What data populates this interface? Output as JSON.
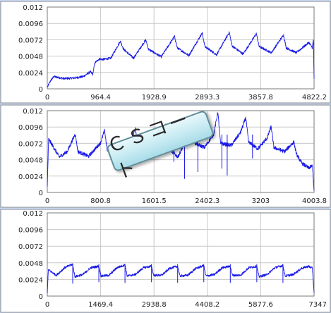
{
  "colors": {
    "series": "#1a1ae6",
    "grid": "#c8c8c8",
    "frame_bg": "#c9d9f7",
    "plot_bg": "#ffffff"
  },
  "watermark": {
    "text": "ＣＳコート"
  },
  "chart_data": [
    {
      "type": "line",
      "title": "",
      "xlabel": "",
      "ylabel": "",
      "ylim": [
        0,
        0.012
      ],
      "xlim": [
        0,
        4822.2
      ],
      "yticks": [
        "0",
        "0.0024",
        "0.0048",
        "0.0072",
        "0.0096",
        "0.012"
      ],
      "xticks": [
        "0",
        "964.4",
        "1928.9",
        "2893.3",
        "3857.8",
        "4822.2"
      ],
      "grid": true,
      "series": [
        {
          "points": [
            [
              0,
              0.0002
            ],
            [
              60,
              0.0012
            ],
            [
              120,
              0.0018
            ],
            [
              300,
              0.0015
            ],
            [
              500,
              0.0016
            ],
            [
              650,
              0.0018
            ],
            [
              780,
              0.0025
            ],
            [
              820,
              0.0021
            ],
            [
              860,
              0.0038
            ],
            [
              940,
              0.0044
            ],
            [
              1000,
              0.0043
            ],
            [
              1150,
              0.0045
            ],
            [
              1320,
              0.007
            ],
            [
              1380,
              0.0058
            ],
            [
              1560,
              0.0045
            ],
            [
              1780,
              0.0072
            ],
            [
              1830,
              0.0058
            ],
            [
              2060,
              0.0047
            ],
            [
              2300,
              0.0077
            ],
            [
              2350,
              0.006
            ],
            [
              2560,
              0.0049
            ],
            [
              2800,
              0.0082
            ],
            [
              2850,
              0.0062
            ],
            [
              3060,
              0.005
            ],
            [
              3290,
              0.0083
            ],
            [
              3340,
              0.0063
            ],
            [
              3540,
              0.0051
            ],
            [
              3780,
              0.0081
            ],
            [
              3830,
              0.0062
            ],
            [
              4050,
              0.0053
            ],
            [
              4270,
              0.0079
            ],
            [
              4320,
              0.006
            ],
            [
              4500,
              0.0053
            ],
            [
              4730,
              0.0068
            ],
            [
              4790,
              0.006
            ],
            [
              4810,
              0.0072
            ],
            [
              4822,
              0.0015
            ]
          ]
        }
      ]
    },
    {
      "type": "line",
      "title": "",
      "xlabel": "",
      "ylabel": "",
      "ylim": [
        0,
        0.012
      ],
      "xlim": [
        0,
        4003.8
      ],
      "yticks": [
        "0",
        "0.0024",
        "0.0048",
        "0.0072",
        "0.0096",
        "0.012"
      ],
      "xticks": [
        "0",
        "800.8",
        "1601.5",
        "2402.3",
        "3203",
        "4003.8"
      ],
      "grid": true,
      "series": [
        {
          "points": [
            [
              0,
              0.0009
            ],
            [
              20,
              0.0078
            ],
            [
              60,
              0.0072
            ],
            [
              180,
              0.0052
            ],
            [
              300,
              0.006
            ],
            [
              420,
              0.0086
            ],
            [
              460,
              0.006
            ],
            [
              620,
              0.0053
            ],
            [
              800,
              0.0073
            ],
            [
              860,
              0.0091
            ],
            [
              900,
              0.0062
            ],
            [
              1060,
              0.0051
            ],
            [
              1260,
              0.0078
            ],
            [
              1320,
              0.0094
            ],
            [
              1360,
              0.0065
            ],
            [
              1520,
              0.005
            ],
            [
              1720,
              0.008
            ],
            [
              1780,
              0.0101
            ],
            [
              1820,
              0.0065
            ],
            [
              1960,
              0.0052
            ],
            [
              2100,
              0.008
            ],
            [
              2180,
              0.0112
            ],
            [
              2220,
              0.0072
            ],
            [
              2360,
              0.0066
            ],
            [
              2500,
              0.0086
            ],
            [
              2560,
              0.0118
            ],
            [
              2600,
              0.0072
            ],
            [
              2760,
              0.0069
            ],
            [
              2900,
              0.0088
            ],
            [
              2980,
              0.011
            ],
            [
              3020,
              0.0074
            ],
            [
              3160,
              0.0064
            ],
            [
              3300,
              0.008
            ],
            [
              3360,
              0.0097
            ],
            [
              3400,
              0.0066
            ],
            [
              3560,
              0.006
            ],
            [
              3700,
              0.0074
            ],
            [
              3740,
              0.0056
            ],
            [
              3820,
              0.0043
            ],
            [
              3920,
              0.0036
            ],
            [
              3980,
              0.0039
            ],
            [
              4003,
              0.0003
            ]
          ]
        }
      ]
    },
    {
      "type": "line",
      "title": "",
      "xlabel": "",
      "ylabel": "",
      "ylim": [
        0,
        0.012
      ],
      "xlim": [
        0,
        7347
      ],
      "yticks": [
        "0",
        "0.0024",
        "0.0048",
        "0.0072",
        "0.0096",
        "0.012"
      ],
      "xticks": [
        "0",
        "1469.4",
        "2938.8",
        "4408.2",
        "5877.6",
        "7347"
      ],
      "grid": true,
      "series": [
        {
          "points": [
            [
              0,
              0.0004
            ],
            [
              30,
              0.0038
            ],
            [
              250,
              0.003
            ],
            [
              480,
              0.0041
            ],
            [
              700,
              0.0046
            ],
            [
              760,
              0.0028
            ],
            [
              980,
              0.0031
            ],
            [
              1200,
              0.0041
            ],
            [
              1420,
              0.0043
            ],
            [
              1480,
              0.0029
            ],
            [
              1700,
              0.003
            ],
            [
              1920,
              0.0041
            ],
            [
              2140,
              0.0045
            ],
            [
              2200,
              0.0029
            ],
            [
              2420,
              0.0031
            ],
            [
              2650,
              0.0041
            ],
            [
              2870,
              0.0043
            ],
            [
              2930,
              0.003
            ],
            [
              3150,
              0.003
            ],
            [
              3370,
              0.004
            ],
            [
              3590,
              0.0043
            ],
            [
              3650,
              0.0029
            ],
            [
              3870,
              0.003
            ],
            [
              4090,
              0.004
            ],
            [
              4310,
              0.0044
            ],
            [
              4370,
              0.0029
            ],
            [
              4600,
              0.0031
            ],
            [
              4820,
              0.0041
            ],
            [
              5040,
              0.0043
            ],
            [
              5100,
              0.003
            ],
            [
              5320,
              0.003
            ],
            [
              5550,
              0.0041
            ],
            [
              5770,
              0.0043
            ],
            [
              5830,
              0.0028
            ],
            [
              6050,
              0.0031
            ],
            [
              6270,
              0.0041
            ],
            [
              6490,
              0.0044
            ],
            [
              6550,
              0.0029
            ],
            [
              6770,
              0.0031
            ],
            [
              7000,
              0.004
            ],
            [
              7200,
              0.0043
            ],
            [
              7300,
              0.004
            ],
            [
              7347,
              0.0005
            ]
          ]
        }
      ]
    }
  ]
}
